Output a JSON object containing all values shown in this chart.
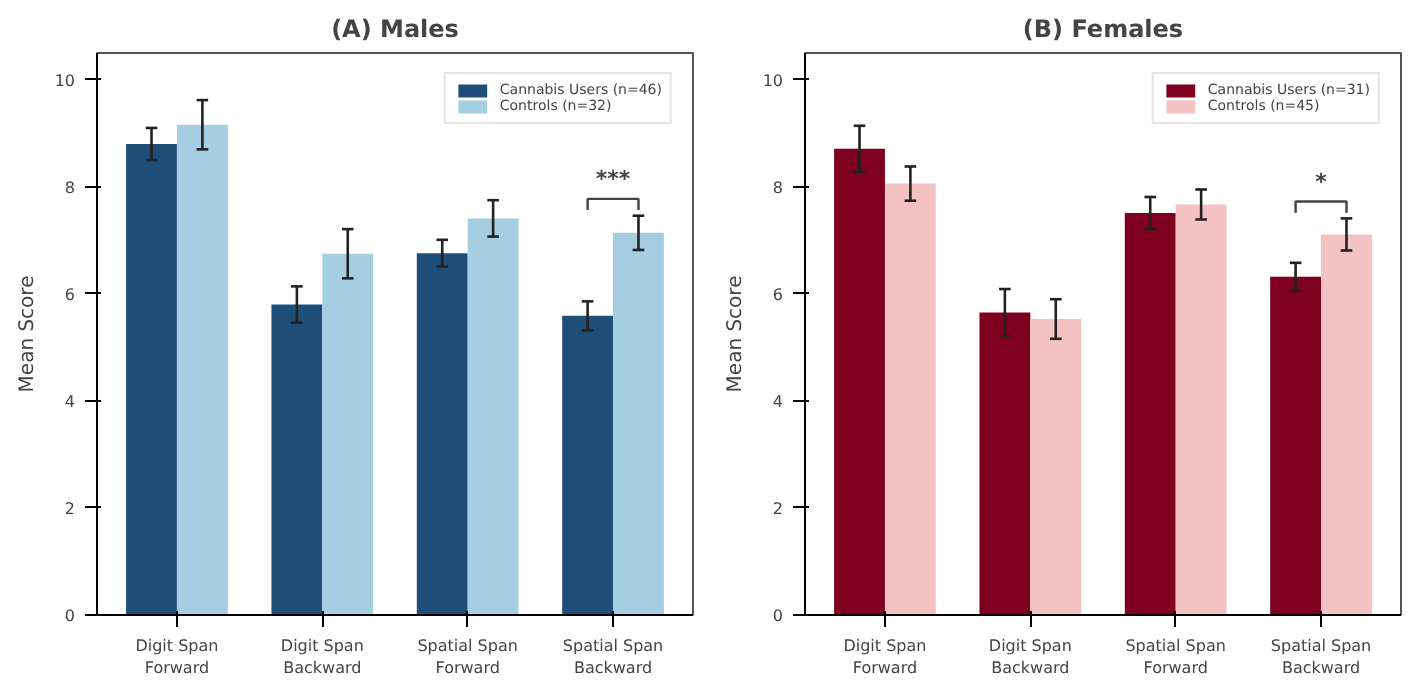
{
  "chart_data": [
    {
      "type": "bar",
      "title": "(A) Males",
      "ylabel": "Mean Score",
      "categories": [
        "Digit Span\nForward",
        "Digit Span\nBackward",
        "Spatial Span\nForward",
        "Spatial Span\nBackward"
      ],
      "ylim": [
        0,
        10.5
      ],
      "yticks": [
        0,
        2,
        4,
        6,
        8,
        10
      ],
      "grid": false,
      "legend": "top right",
      "series": [
        {
          "name": "Cannabis Users (n=46)",
          "color": "#1f4e79",
          "values": [
            8.8,
            5.8,
            6.76,
            5.59
          ],
          "errors": [
            0.3,
            0.34,
            0.25,
            0.27
          ]
        },
        {
          "name": "Controls (n=32)",
          "color": "#a6cee3",
          "values": [
            9.16,
            6.75,
            7.41,
            7.14
          ],
          "errors": [
            0.46,
            0.46,
            0.34,
            0.32
          ]
        }
      ],
      "annotations": [
        "***"
      ]
    },
    {
      "type": "bar",
      "title": "(B) Females",
      "ylabel": "Mean Score",
      "categories": [
        "Digit Span\nForward",
        "Digit Span\nBackward",
        "Spatial Span\nForward",
        "Spatial Span\nBackward"
      ],
      "ylim": [
        0,
        10.5
      ],
      "yticks": [
        0,
        2,
        4,
        6,
        8,
        10
      ],
      "grid": false,
      "legend": "top right",
      "series": [
        {
          "name": "Cannabis Users (n=31)",
          "color": "#800020",
          "values": [
            8.71,
            5.65,
            7.51,
            6.32
          ],
          "errors": [
            0.43,
            0.44,
            0.3,
            0.26
          ]
        },
        {
          "name": "Controls (n=45)",
          "color": "#f4c2c2",
          "values": [
            8.06,
            5.53,
            7.67,
            7.11
          ],
          "errors": [
            0.32,
            0.37,
            0.28,
            0.3
          ]
        }
      ],
      "annotations": [
        "*"
      ]
    }
  ]
}
